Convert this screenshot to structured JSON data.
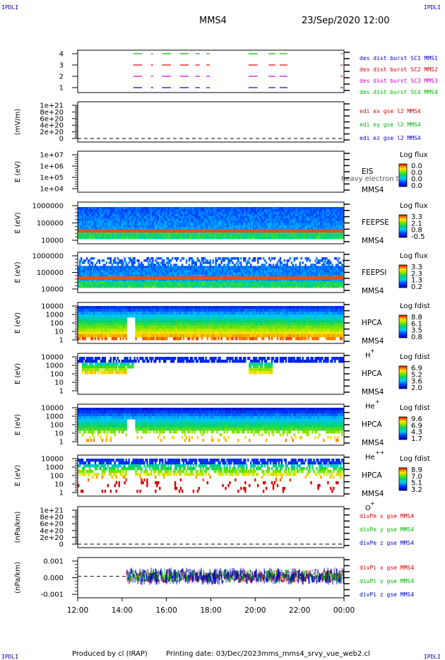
{
  "header": {
    "corner_label": "IPDLI",
    "spacecraft": "MMS4",
    "datetime": "23/Sep/2020 12:00"
  },
  "footer": {
    "produced_by": "Produced by cl (IRAP)",
    "printing_date": "Printing date: 03/Dec/2023",
    "filename": "mms_mms4_srvy_vue_web2.cl"
  },
  "chart_data": {
    "type": "multi-panel time series",
    "x_tick_labels": [
      "12:00",
      "14:00",
      "16:00",
      "18:00",
      "20:00",
      "22:00",
      "00:00"
    ],
    "panels": [
      {
        "id": "burst",
        "type": "segments",
        "ylabel": "",
        "y_ticks": [
          "4",
          "3",
          "2",
          "1"
        ],
        "series": [
          {
            "name": "des dist burst SC1 MMS1",
            "color": "#0000c8",
            "level": 1
          },
          {
            "name": "des dist burst SC2 MMS2",
            "color": "#d80000",
            "level": 3
          },
          {
            "name": "des dist burst SC3 MMS3",
            "color": "#c800c8",
            "level": 2
          },
          {
            "name": "des dist burst SC4 MMS4",
            "color": "#00b400",
            "level": 4
          }
        ],
        "intervals_hours": [
          [
            14.5,
            14.9
          ],
          [
            15.3,
            15.4
          ],
          [
            15.8,
            16.2
          ],
          [
            16.6,
            17.0
          ],
          [
            17.3,
            17.5
          ],
          [
            17.8,
            17.95
          ],
          [
            19.7,
            20.1
          ],
          [
            20.6,
            20.9
          ],
          [
            21.1,
            21.45
          ],
          [
            23.85,
            23.95
          ]
        ]
      },
      {
        "id": "edi",
        "type": "line",
        "ylabel": "(mV/m)",
        "y_ticks": [
          "1e+21",
          "8e+20",
          "6e+20",
          "4e+20",
          "2e+20",
          "0"
        ],
        "series": [
          {
            "name": "edi ex gse l2 MMS4",
            "color": "#d80000"
          },
          {
            "name": "edi ey gse l2 MMS4",
            "color": "#00b400"
          },
          {
            "name": "edi ez gse l2 MMS4",
            "color": "#0000c8"
          }
        ]
      },
      {
        "id": "eis",
        "type": "spectrogram",
        "ylabel": "E (eV)",
        "y_ticks": [
          "1e+07",
          "1e+06",
          "1e+05",
          "1e+04"
        ],
        "labels": [
          "EIS",
          "MMS4"
        ],
        "overlay_text": "heavy electron tof",
        "colorbar_title": "Log flux",
        "colorbar_ticks": [
          "0.0",
          "0.0",
          "0.0",
          "0.0"
        ]
      },
      {
        "id": "feepse",
        "type": "spectrogram",
        "ylabel": "E (eV)",
        "y_ticks": [
          "1000000",
          "100000",
          "10000"
        ],
        "labels": [
          "FEEPSE",
          "MMS4"
        ],
        "colorbar_title": "Log flux",
        "colorbar_ticks": [
          "3.3",
          "2.1",
          "0.8",
          "-0.5"
        ]
      },
      {
        "id": "feepsi",
        "type": "spectrogram",
        "ylabel": "E (eV)",
        "y_ticks": [
          "1000000",
          "100000",
          "10000"
        ],
        "labels": [
          "FEEPSI",
          "MMS4"
        ],
        "colorbar_title": "Log flux",
        "colorbar_ticks": [
          "3.3",
          "2.3",
          "1.3",
          "0.2"
        ]
      },
      {
        "id": "hpca_h",
        "type": "spectrogram",
        "ylabel": "E (eV)",
        "y_ticks": [
          "10000",
          "1000",
          "100",
          "10",
          "1"
        ],
        "labels": [
          "HPCA",
          "MMS4"
        ],
        "species": "H",
        "species_sup": "+",
        "colorbar_title": "Log fdist",
        "colorbar_ticks": [
          "8.8",
          "6.1",
          "3.5",
          "0.8"
        ]
      },
      {
        "id": "hpca_he",
        "type": "spectrogram",
        "ylabel": "E (eV)",
        "y_ticks": [
          "10000",
          "1000",
          "100",
          "10",
          "1"
        ],
        "labels": [
          "HPCA",
          "MMS4"
        ],
        "species": "He",
        "species_sup": "+",
        "colorbar_title": "Log fdist",
        "colorbar_ticks": [
          "6.9",
          "5.2",
          "3.6",
          "2.0"
        ]
      },
      {
        "id": "hpca_he2",
        "type": "spectrogram",
        "ylabel": "E (eV)",
        "y_ticks": [
          "10000",
          "1000",
          "100",
          "10",
          "1"
        ],
        "labels": [
          "HPCA",
          "MMS4"
        ],
        "species": "He",
        "species_sup": "++",
        "colorbar_title": "Log fdist",
        "colorbar_ticks": [
          "9.6",
          "6.9",
          "4.3",
          "1.7"
        ]
      },
      {
        "id": "hpca_o",
        "type": "spectrogram",
        "ylabel": "E (eV)",
        "y_ticks": [
          "10000",
          "1000",
          "100",
          "10",
          "1"
        ],
        "labels": [
          "HPCA",
          "MMS4"
        ],
        "species": "O",
        "species_sup": "+",
        "colorbar_title": "Log fdist",
        "colorbar_ticks": [
          "8.9",
          "7.0",
          "5.1",
          "3.2"
        ]
      },
      {
        "id": "divpe",
        "type": "line",
        "ylabel": "(nPa/km)",
        "y_ticks": [
          "1e+21",
          "8e+20",
          "6e+20",
          "4e+20",
          "2e+20",
          "0"
        ],
        "series": [
          {
            "name": "divPe x gse MMS4",
            "color": "#d80000"
          },
          {
            "name": "divPe y gse MMS4",
            "color": "#00b400"
          },
          {
            "name": "divPe z gse MMS4",
            "color": "#0000c8"
          }
        ]
      },
      {
        "id": "divpi",
        "type": "line",
        "ylabel": "(nPa/km)",
        "y_ticks": [
          "0.001",
          "0.000",
          "-0.001"
        ],
        "ylim": [
          -0.0015,
          0.0013
        ],
        "series": [
          {
            "name": "divPi x gse MMS4",
            "color": "#d80000"
          },
          {
            "name": "divPi y gse MMS4",
            "color": "#00b400"
          },
          {
            "name": "divPi z gse MMS4",
            "color": "#0000c8"
          }
        ],
        "data_start_hour": 14.2
      }
    ]
  }
}
